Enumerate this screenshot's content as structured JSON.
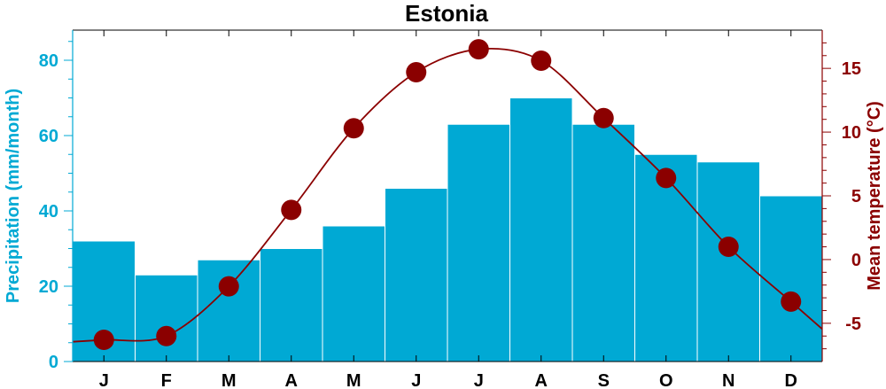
{
  "chart_data": {
    "type": "bar+line",
    "title": "Estonia",
    "categories": [
      "J",
      "F",
      "M",
      "A",
      "M",
      "J",
      "J",
      "A",
      "S",
      "O",
      "N",
      "D"
    ],
    "series": [
      {
        "name": "Precipitation",
        "type": "bar",
        "axis": "left",
        "values": [
          32,
          23,
          27,
          30,
          36,
          46,
          63,
          70,
          63,
          55,
          53,
          44
        ]
      },
      {
        "name": "Mean temperature",
        "type": "line",
        "axis": "right",
        "values": [
          -6.3,
          -6.0,
          -2.1,
          3.9,
          10.3,
          14.7,
          16.5,
          15.6,
          11.1,
          6.4,
          1.0,
          -3.3
        ]
      }
    ],
    "ylabel_left": "Precipitation (mm/month)",
    "ylabel_right": "Mean temperature (°C)",
    "ylim_left": [
      0,
      88
    ],
    "yticks_left": [
      "0",
      "20",
      "40",
      "60",
      "80"
    ],
    "ylim_right": [
      -8,
      18
    ],
    "yticks_right": [
      "-5",
      "0",
      "5",
      "10",
      "15"
    ],
    "grid": false,
    "colors": {
      "bars": "#00a9d4",
      "bar_edge": "#ffffff",
      "left_axis": "#00a9d4",
      "right_axis": "#8b0000",
      "line": "#8b0000",
      "markers": "#8b0000"
    }
  }
}
